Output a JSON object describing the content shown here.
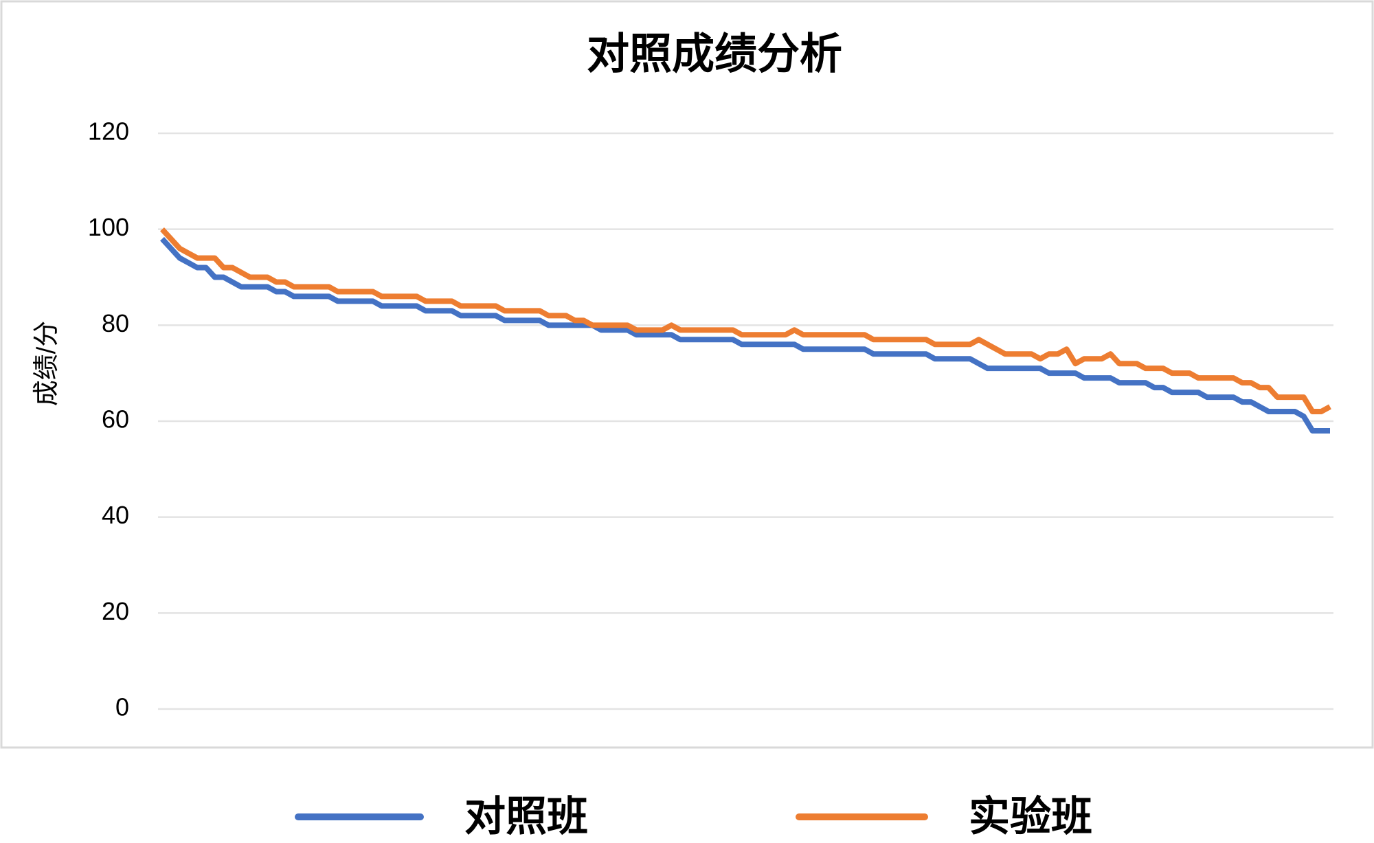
{
  "chart_data": {
    "type": "line",
    "title": "对照成绩分析",
    "y_label": "成绩/分",
    "ylim": [
      0,
      120
    ],
    "yticks": [
      0,
      20,
      40,
      60,
      80,
      100,
      120
    ],
    "grid": true,
    "legend": "bottom",
    "series": [
      {
        "name": "对照班",
        "color": "#4472c4",
        "values": [
          98,
          96,
          94,
          93,
          92,
          92,
          90,
          90,
          89,
          88,
          88,
          88,
          88,
          87,
          87,
          86,
          86,
          86,
          86,
          86,
          85,
          85,
          85,
          85,
          85,
          84,
          84,
          84,
          84,
          84,
          83,
          83,
          83,
          83,
          82,
          82,
          82,
          82,
          82,
          81,
          81,
          81,
          81,
          81,
          80,
          80,
          80,
          80,
          80,
          80,
          79,
          79,
          79,
          79,
          78,
          78,
          78,
          78,
          78,
          77,
          77,
          77,
          77,
          77,
          77,
          77,
          76,
          76,
          76,
          76,
          76,
          76,
          76,
          75,
          75,
          75,
          75,
          75,
          75,
          75,
          75,
          74,
          74,
          74,
          74,
          74,
          74,
          74,
          73,
          73,
          73,
          73,
          73,
          72,
          71,
          71,
          71,
          71,
          71,
          71,
          71,
          70,
          70,
          70,
          70,
          69,
          69,
          69,
          69,
          68,
          68,
          68,
          68,
          67,
          67,
          66,
          66,
          66,
          66,
          65,
          65,
          65,
          65,
          64,
          64,
          63,
          62,
          62,
          62,
          62,
          61,
          58,
          58,
          58
        ]
      },
      {
        "name": "实验班",
        "color": "#ed7d31",
        "values": [
          100,
          98,
          96,
          95,
          94,
          94,
          94,
          92,
          92,
          91,
          90,
          90,
          90,
          89,
          89,
          88,
          88,
          88,
          88,
          88,
          87,
          87,
          87,
          87,
          87,
          86,
          86,
          86,
          86,
          86,
          85,
          85,
          85,
          85,
          84,
          84,
          84,
          84,
          84,
          83,
          83,
          83,
          83,
          83,
          82,
          82,
          82,
          81,
          81,
          80,
          80,
          80,
          80,
          80,
          79,
          79,
          79,
          79,
          80,
          79,
          79,
          79,
          79,
          79,
          79,
          79,
          78,
          78,
          78,
          78,
          78,
          78,
          79,
          78,
          78,
          78,
          78,
          78,
          78,
          78,
          78,
          77,
          77,
          77,
          77,
          77,
          77,
          77,
          76,
          76,
          76,
          76,
          76,
          77,
          76,
          75,
          74,
          74,
          74,
          74,
          73,
          74,
          74,
          75,
          72,
          73,
          73,
          73,
          74,
          72,
          72,
          72,
          71,
          71,
          71,
          70,
          70,
          70,
          69,
          69,
          69,
          69,
          69,
          68,
          68,
          67,
          67,
          65,
          65,
          65,
          65,
          62,
          62,
          63
        ]
      }
    ]
  }
}
